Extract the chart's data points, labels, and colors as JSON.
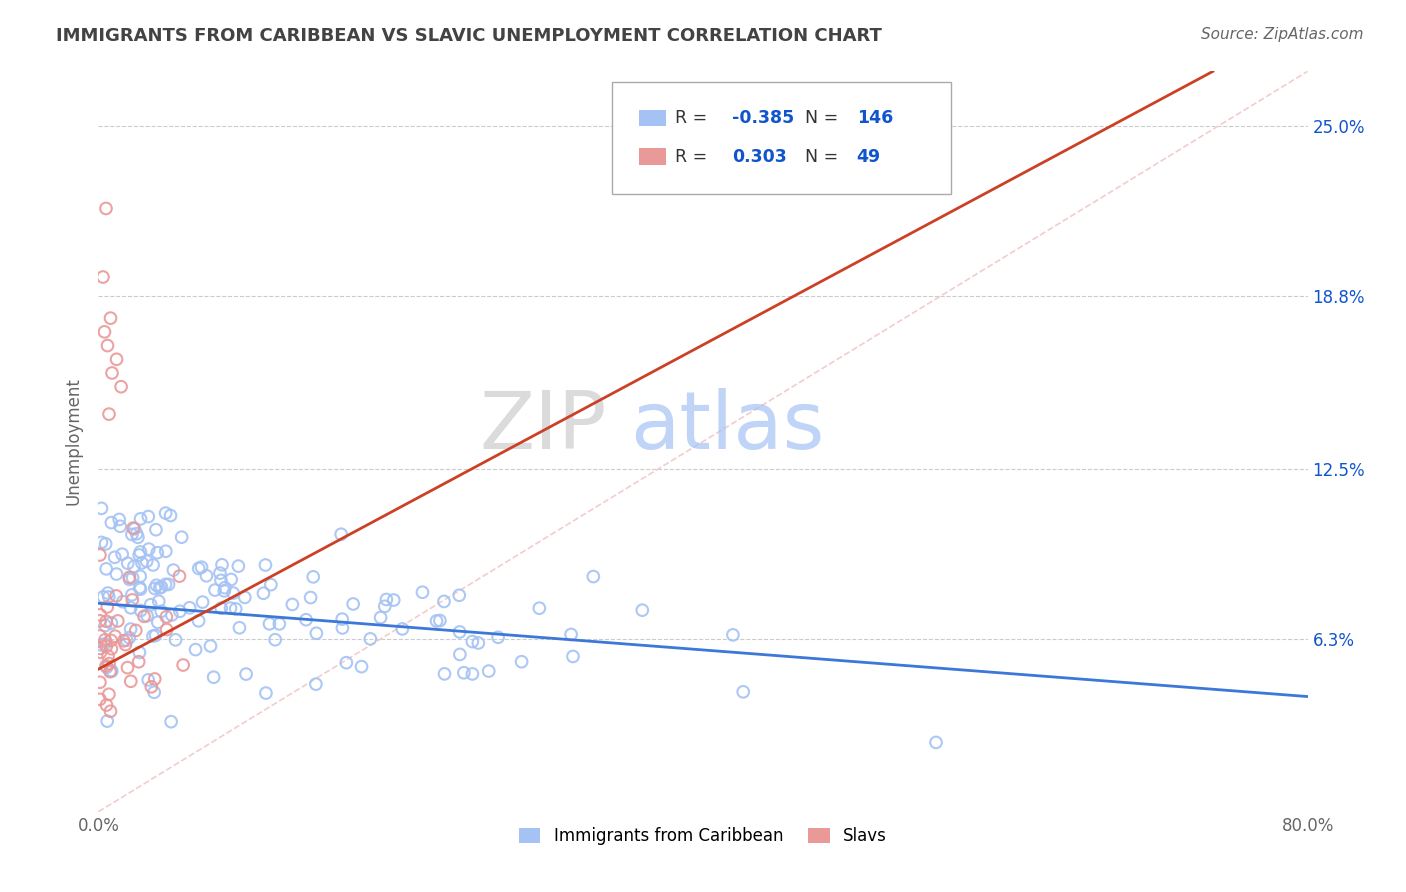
{
  "title": "IMMIGRANTS FROM CARIBBEAN VS SLAVIC UNEMPLOYMENT CORRELATION CHART",
  "source": "Source: ZipAtlas.com",
  "ylabel": "Unemployment",
  "xlim": [
    0.0,
    0.8
  ],
  "ylim": [
    0.0,
    0.27
  ],
  "yticks": [
    0.063,
    0.125,
    0.188,
    0.25
  ],
  "ytick_labels": [
    "6.3%",
    "12.5%",
    "18.8%",
    "25.0%"
  ],
  "xticks": [
    0.0,
    0.8
  ],
  "xtick_labels": [
    "0.0%",
    "80.0%"
  ],
  "caribbean_R": -0.385,
  "caribbean_N": 146,
  "slavic_R": 0.303,
  "slavic_N": 49,
  "caribbean_color": "#a4c2f4",
  "slavic_color": "#ea9999",
  "trendline_caribbean_color": "#3c78d8",
  "trendline_slavic_color": "#cc4125",
  "diagonal_color": "#f4cccc",
  "background_color": "#ffffff",
  "legend_label_caribbean": "Immigrants from Caribbean",
  "legend_label_slavic": "Slavs",
  "legend_R_color": "#1155cc",
  "legend_N_color": "#1155cc",
  "legend_label_color": "#1155cc",
  "watermark_zip_color": "#cccccc",
  "watermark_atlas_color": "#a4c2f4",
  "title_color": "#434343",
  "source_color": "#666666",
  "ylabel_color": "#666666",
  "tick_color": "#666666",
  "grid_color": "#cccccc",
  "right_tick_color": "#1155cc"
}
